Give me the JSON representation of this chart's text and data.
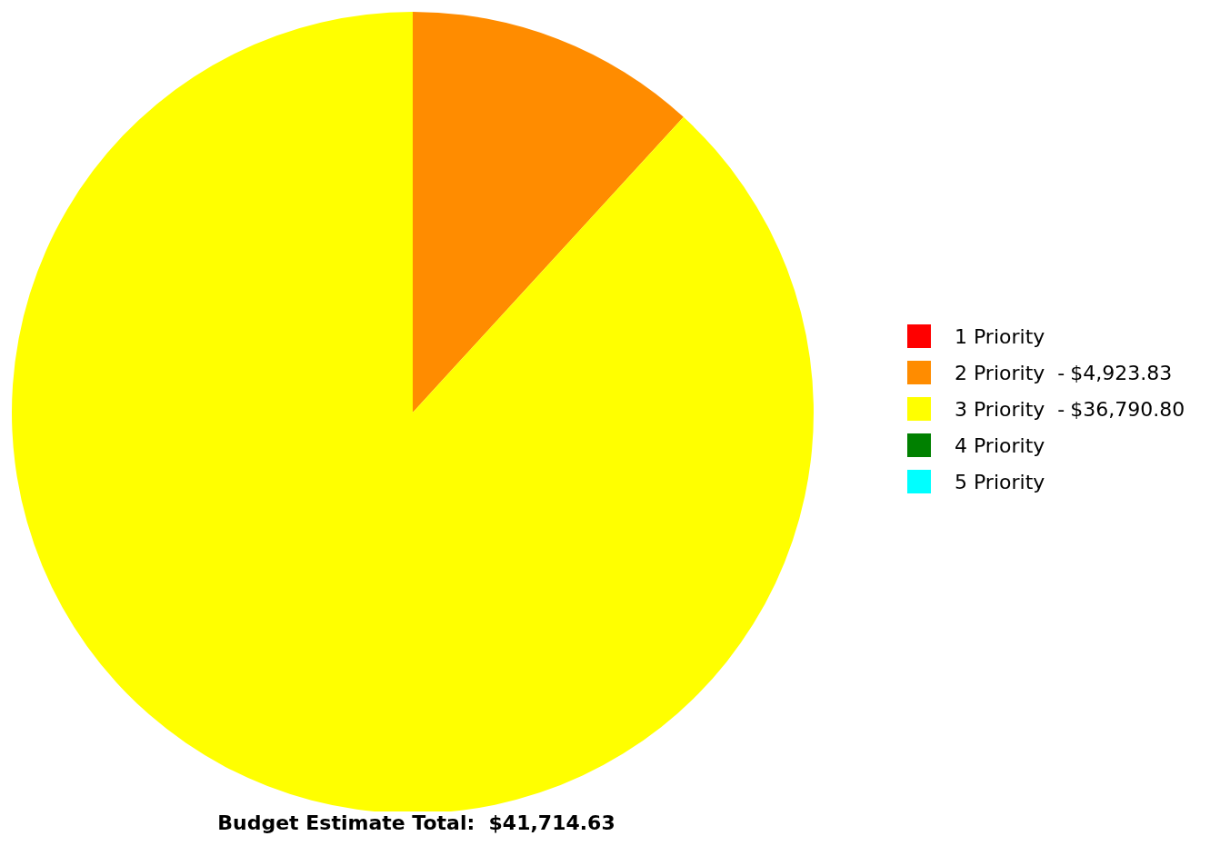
{
  "chart_data": {
    "type": "pie",
    "title": "Budget Estimate Total:  $41,714.63",
    "categories": [
      "1 Priority",
      "2 Priority  -",
      "3 Priority  -",
      "4 Priority",
      "5 Priority"
    ],
    "value_labels": [
      null,
      "$4,923.83",
      "$36,790.80",
      null,
      null
    ],
    "values": [
      0,
      4923.83,
      36790.8,
      0,
      0
    ],
    "colors": [
      "#ff0000",
      "#ff8c00",
      "#ffff00",
      "#008000",
      "#00ffff"
    ],
    "legend": "right"
  }
}
